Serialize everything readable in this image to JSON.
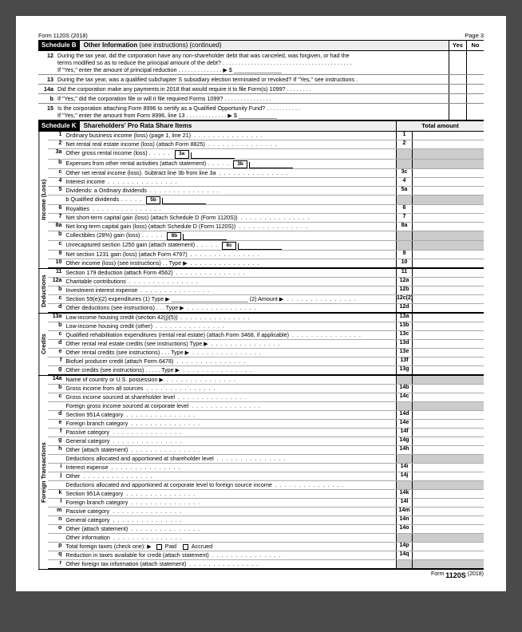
{
  "header": {
    "form": "Form 1120S (2018)",
    "page": "Page 3"
  },
  "scheduleB": {
    "label": "Schedule B",
    "title_b": "Other Information",
    "title_rest": " (see instructions) (continued)",
    "yes": "Yes",
    "no": "No"
  },
  "q12": {
    "num": "12",
    "l1": "During the tax year, did the corporation have any non-shareholder debt that was canceled, was forgiven, or had the",
    "l2": "terms modified so as to reduce the principal amount of the debt?",
    "l3": "If \"Yes,\" enter the amount of principal reduction",
    "sym": "▶ $"
  },
  "q13": {
    "num": "13",
    "txt": "During the tax year, was a qualified subchapter S subsidiary election terminated or revoked? If \"Yes,\" see instructions ."
  },
  "q14a": {
    "num": "14a",
    "txt": "Did the corporation make any payments in 2018 that would require it to file Form(s) 1099?"
  },
  "q14b": {
    "num": "b",
    "txt": "If \"Yes,\" did the corporation file or will it file required Forms 1099?"
  },
  "q15": {
    "num": "15",
    "l1": "Is the corporation attaching Form 8996 to certify as a Qualified Opportunity Fund?",
    "l2": "If \"Yes,\" enter the amount from Form 8996, line 13",
    "sym": "▶ $"
  },
  "scheduleK": {
    "label": "Schedule K",
    "title": "Shareholders' Pro Rata Share Items",
    "tot": "Total amount"
  },
  "sidebars": {
    "income": "Income (Loss)",
    "deductions": "Deductions",
    "credits": "Credits",
    "foreign": "Foreign Transactions"
  },
  "rows_income": [
    {
      "n": "1",
      "t": "Ordinary business income (loss) (page 1, line 21)",
      "b": "1"
    },
    {
      "n": "2",
      "t": "Net rental real estate income (loss) (attach Form 8825)",
      "b": "2"
    },
    {
      "n": "3a",
      "t": "Other gross rental income (loss)",
      "inl": "3a",
      "shade": true
    },
    {
      "n": "b",
      "t": "Expenses from other rental activities (attach statement)",
      "inl": "3b",
      "shade": true
    },
    {
      "n": "c",
      "t": "Other net rental income (loss). Subtract line 3b from line 3a",
      "b": "3c"
    },
    {
      "n": "4",
      "t": "Interest income",
      "b": "4"
    },
    {
      "n": "5",
      "t": "Dividends: a Ordinary dividends",
      "b": "5a"
    },
    {
      "n": "",
      "t": "                    b Qualified dividends",
      "inl": "5b",
      "shade": true
    },
    {
      "n": "6",
      "t": "Royalties",
      "b": "6"
    },
    {
      "n": "7",
      "t": "Net short-term capital gain (loss) (attach Schedule D (Form 1120S))",
      "b": "7"
    },
    {
      "n": "8a",
      "t": "Net long-term capital gain (loss) (attach Schedule D (Form 1120S))",
      "b": "8a"
    },
    {
      "n": "b",
      "t": "Collectibles (28%) gain (loss)",
      "inl": "8b",
      "shade": true
    },
    {
      "n": "c",
      "t": "Unrecaptured section 1250 gain (attach statement)",
      "inl": "8c",
      "shade": true
    },
    {
      "n": "9",
      "t": "Net section 1231 gain (loss) (attach Form 4797)",
      "b": "9"
    },
    {
      "n": "10",
      "t": "Other income (loss) (see instructions)  .  .   Type ▶",
      "b": "10"
    }
  ],
  "rows_deduct": [
    {
      "n": "11",
      "t": "Section 179 deduction (attach Form 4562)",
      "b": "11"
    },
    {
      "n": "12a",
      "t": "Charitable contributions",
      "b": "12a"
    },
    {
      "n": "b",
      "t": "Investment interest expense",
      "b": "12b"
    },
    {
      "n": "c",
      "t": "Section 59(e)(2) expenditures   (1) Type ▶ ________________________   (2) Amount ▶",
      "b": "12c(2)"
    },
    {
      "n": "d",
      "t": "Other deductions (see instructions)  .  .  .   Type ▶",
      "b": "12d"
    }
  ],
  "rows_credits": [
    {
      "n": "13a",
      "t": "Low-income housing credit (section 42(j)(5))",
      "b": "13a"
    },
    {
      "n": "b",
      "t": "Low-income housing credit (other)",
      "b": "13b"
    },
    {
      "n": "c",
      "t": "Qualified rehabilitation expenditures (rental real estate) (attach Form 3468, if applicable)",
      "b": "13c"
    },
    {
      "n": "d",
      "t": "Other rental real estate credits (see instructions)   Type ▶",
      "b": "13d"
    },
    {
      "n": "e",
      "t": "Other rental credits (see instructions)  .  .  .   Type ▶",
      "b": "13e"
    },
    {
      "n": "f",
      "t": "Biofuel producer credit (attach Form 6478)",
      "b": "13f"
    },
    {
      "n": "g",
      "t": "Other credits (see instructions)  .  .  .  .  .   Type ▶",
      "b": "13g"
    }
  ],
  "rows_foreign": [
    {
      "n": "14a",
      "t": "Name of country or U.S. possession ▶",
      "shade": true
    },
    {
      "n": "b",
      "t": "Gross income from all sources",
      "b": "14b"
    },
    {
      "n": "c",
      "t": "Gross income sourced at shareholder level",
      "b": "14c"
    },
    {
      "n": "",
      "t": "Foreign gross income sourced at corporate level",
      "shade": true
    },
    {
      "n": "d",
      "t": "Section 951A category",
      "b": "14d"
    },
    {
      "n": "e",
      "t": "Foreign branch category",
      "b": "14e"
    },
    {
      "n": "f",
      "t": "Passive category",
      "b": "14f"
    },
    {
      "n": "g",
      "t": "General category",
      "b": "14g"
    },
    {
      "n": "h",
      "t": "Other (attach statement)",
      "b": "14h"
    },
    {
      "n": "",
      "t": "Deductions allocated and apportioned at shareholder level",
      "shade": true
    },
    {
      "n": "i",
      "t": "Interest expense",
      "b": "14i"
    },
    {
      "n": "j",
      "t": "Other",
      "b": "14j"
    },
    {
      "n": "",
      "t": "Deductions allocated and apportioned at corporate level to foreign source income",
      "shade": true
    },
    {
      "n": "k",
      "t": "Section 951A category",
      "b": "14k"
    },
    {
      "n": "l",
      "t": "Foreign branch category",
      "b": "14l"
    },
    {
      "n": "m",
      "t": "Passive category",
      "b": "14m"
    },
    {
      "n": "n",
      "t": "General category",
      "b": "14n"
    },
    {
      "n": "o",
      "t": "Other (attach statement)",
      "b": "14o"
    },
    {
      "n": "",
      "t": "Other information",
      "shade": true
    },
    {
      "n": "p",
      "t": "Total foreign taxes (check one): ▶  ☐ Paid   ☐ Accrued",
      "b": "14p",
      "chk": true
    },
    {
      "n": "q",
      "t": "Reduction in taxes available for credit (attach statement)",
      "b": "14q"
    },
    {
      "n": "r",
      "t": "Other foreign tax information (attach statement)",
      "shade": true
    }
  ],
  "footer": {
    "form": "Form",
    "num": "1120S",
    "yr": "(2018)"
  }
}
